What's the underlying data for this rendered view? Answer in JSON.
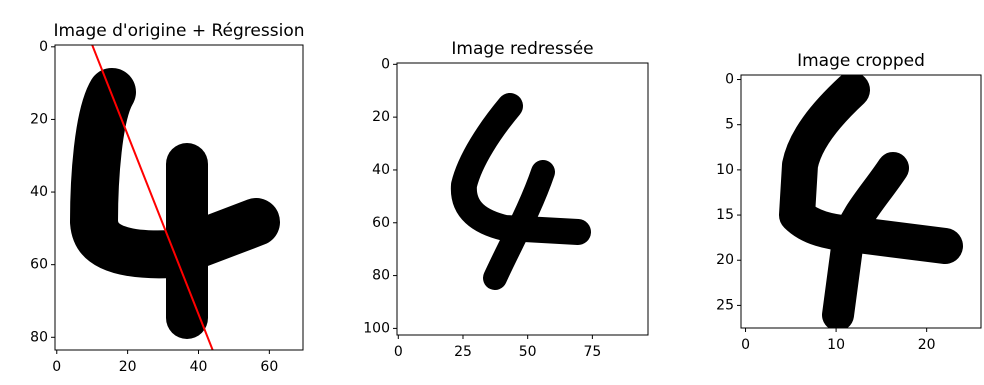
{
  "chart_data": [
    {
      "type": "image",
      "title": "Image d'origine + Régression",
      "xlim": [
        -0.5,
        69.5
      ],
      "ylim": [
        83.5,
        -0.5
      ],
      "xticks": [
        0,
        20,
        40,
        60
      ],
      "yticks": [
        0,
        20,
        40,
        60,
        80
      ],
      "overlay": {
        "type": "line",
        "color": "#ff0000",
        "x": [
          10,
          44
        ],
        "y": [
          -0.5,
          83.5
        ]
      }
    },
    {
      "type": "image",
      "title": "Image redressée",
      "xlim": [
        -0.5,
        96.5
      ],
      "ylim": [
        102.5,
        -0.5
      ],
      "xticks": [
        0,
        25,
        50,
        75
      ],
      "yticks": [
        0,
        20,
        40,
        60,
        80,
        100
      ]
    },
    {
      "type": "image",
      "title": "Image cropped",
      "xlim": [
        -0.5,
        26
      ],
      "ylim": [
        27.5,
        -0.5
      ],
      "xticks": [
        0,
        10,
        20
      ],
      "yticks": [
        0,
        5,
        10,
        15,
        20,
        25
      ]
    }
  ]
}
